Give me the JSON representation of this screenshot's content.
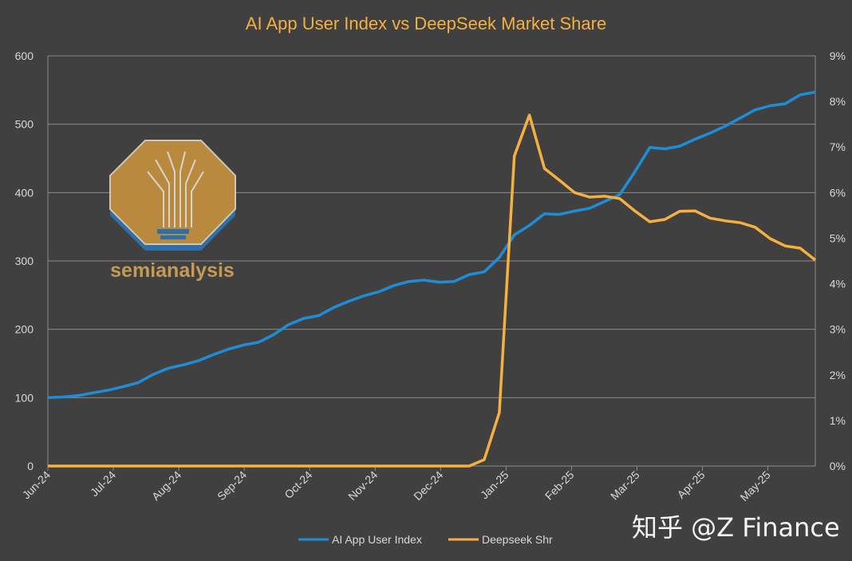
{
  "chart_data": {
    "type": "line",
    "title": "AI App User Index vs DeepSeek Market Share",
    "xlabel": "",
    "ylabel": "",
    "y_left_ticks": [
      "0",
      "100",
      "200",
      "300",
      "400",
      "500",
      "600"
    ],
    "y_left_range": [
      0,
      600
    ],
    "y_right_ticks": [
      "0%",
      "1%",
      "2%",
      "3%",
      "4%",
      "5%",
      "6%",
      "7%",
      "8%",
      "9%"
    ],
    "y_right_range": [
      0,
      9
    ],
    "x_tick_labels": [
      "Jun-24",
      "Jul-24",
      "Aug-24",
      "Sep-24",
      "Oct-24",
      "Nov-24",
      "Dec-24",
      "Jan-25",
      "Feb-25",
      "Mar-25",
      "Apr-25",
      "May-25"
    ],
    "x_points_count": 52,
    "x_period": "weekly",
    "grid": true,
    "legend_position": "bottom",
    "series": [
      {
        "name": "AI App User Index",
        "axis": "left",
        "color": "#1f8dd6",
        "values": [
          100,
          101,
          103,
          107,
          111,
          116,
          122,
          134,
          143,
          148,
          154,
          163,
          171,
          177,
          181,
          192,
          207,
          216,
          220,
          232,
          241,
          249,
          255,
          264,
          270,
          272,
          269,
          270,
          280,
          284,
          305,
          338,
          352,
          369,
          368,
          373,
          377,
          387,
          397,
          430,
          466,
          464,
          468,
          478,
          487,
          497,
          509,
          521,
          527,
          530,
          543,
          547
        ]
      },
      {
        "name": "Deepseek Shr",
        "axis": "right",
        "unit": "%",
        "color": "#f5b041",
        "values": [
          0,
          0,
          0,
          0,
          0,
          0,
          0,
          0,
          0,
          0,
          0,
          0,
          0,
          0,
          0,
          0,
          0,
          0,
          0,
          0,
          0,
          0,
          0,
          0,
          0,
          0,
          0,
          0,
          0,
          0.14,
          1.17,
          6.8,
          7.7,
          6.53,
          6.27,
          6.0,
          5.9,
          5.92,
          5.87,
          5.6,
          5.36,
          5.41,
          5.59,
          5.6,
          5.44,
          5.38,
          5.34,
          5.24,
          4.99,
          4.83,
          4.78,
          4.52
        ]
      }
    ]
  },
  "logo": {
    "text": "semianalysis"
  },
  "watermark": {
    "text": "知乎 @Z Finance"
  }
}
